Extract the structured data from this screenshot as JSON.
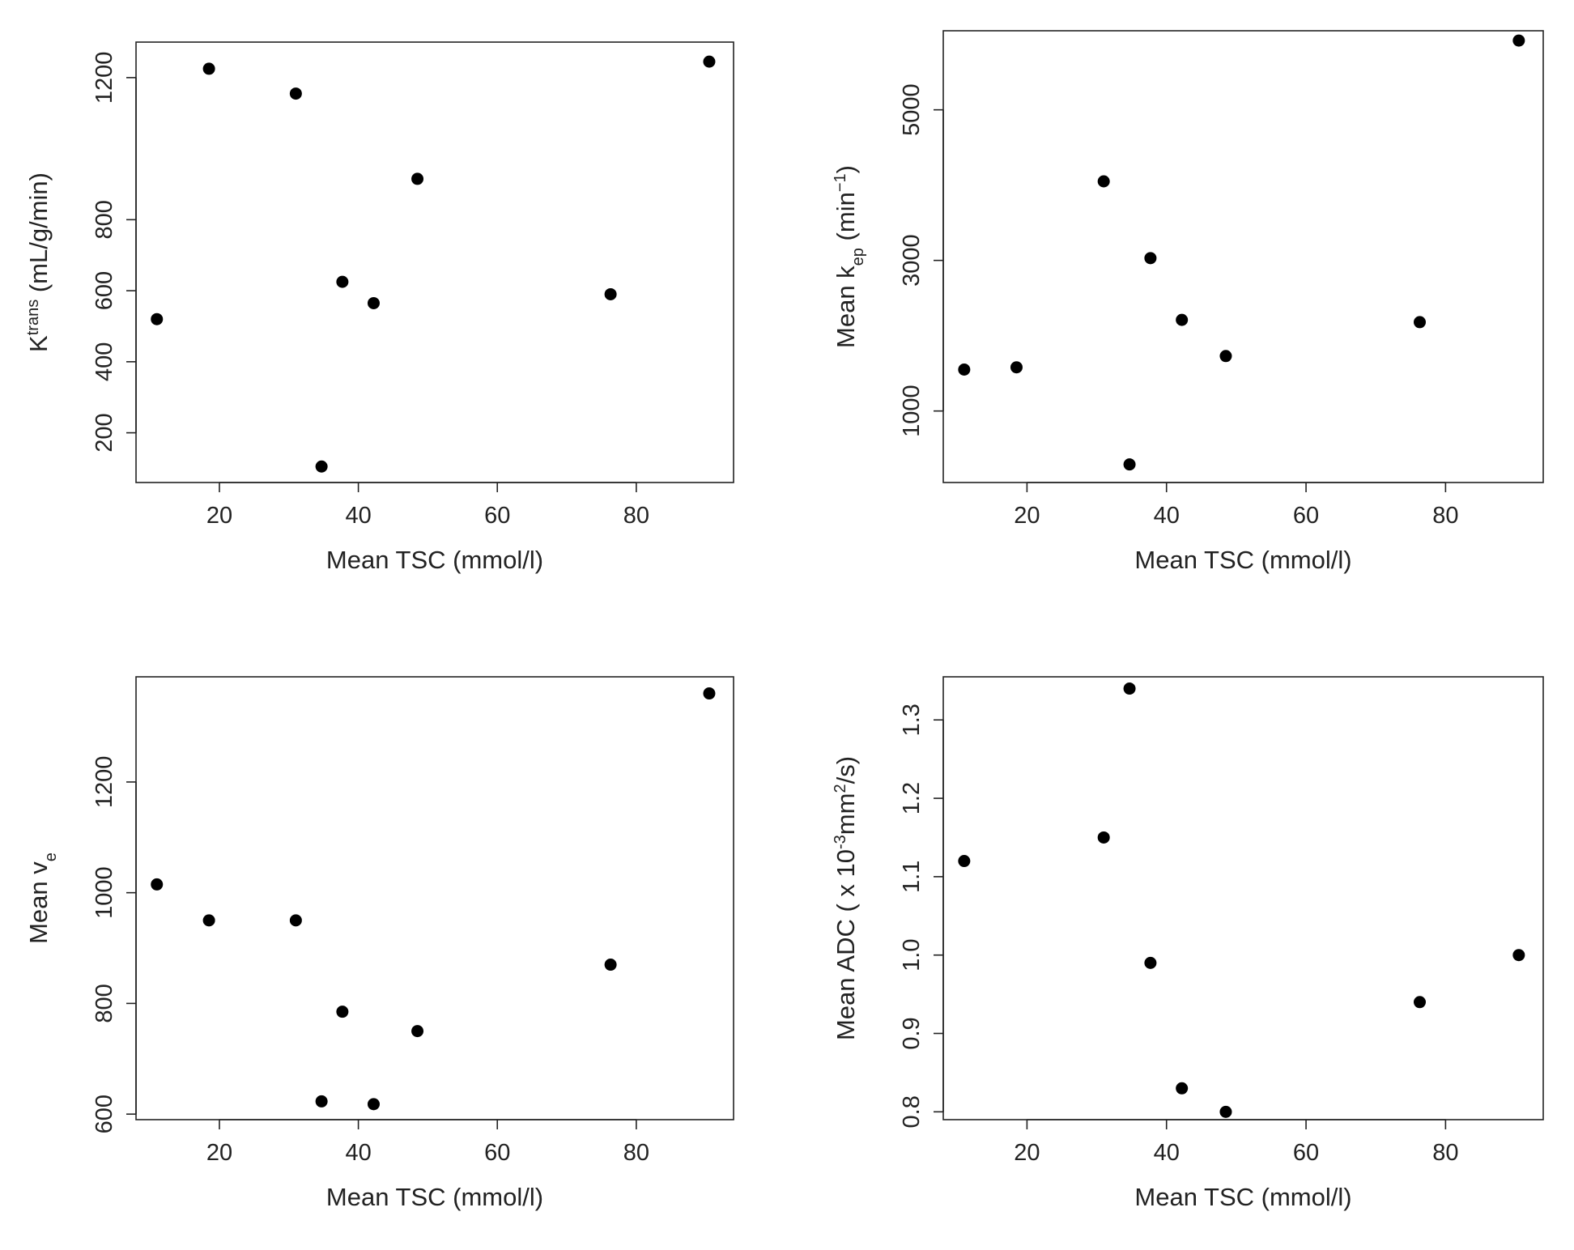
{
  "chart_data": [
    {
      "type": "scatter",
      "xlabel": "Mean TSC (mmol/l)",
      "ylabel_parts": [
        {
          "text": "K"
        },
        {
          "text": "trans",
          "shift": "super"
        },
        {
          "text": " (mL/g/min)"
        }
      ],
      "xlim": [
        8,
        94
      ],
      "ylim": [
        60,
        1300
      ],
      "xticks": [
        20,
        40,
        60,
        80
      ],
      "yticks": [
        200,
        400,
        600,
        800,
        1200
      ],
      "points": [
        {
          "x": 11,
          "y": 520
        },
        {
          "x": 18.5,
          "y": 1225
        },
        {
          "x": 31,
          "y": 1155
        },
        {
          "x": 34.7,
          "y": 105
        },
        {
          "x": 37.7,
          "y": 625
        },
        {
          "x": 42.2,
          "y": 565
        },
        {
          "x": 48.5,
          "y": 915
        },
        {
          "x": 76.3,
          "y": 590
        },
        {
          "x": 90.5,
          "y": 1245
        }
      ]
    },
    {
      "type": "scatter",
      "xlabel": "Mean TSC (mmol/l)",
      "ylabel_parts": [
        {
          "text": "Mean k"
        },
        {
          "text": "ep",
          "shift": "sub"
        },
        {
          "text": " (min"
        },
        {
          "text": "−1",
          "shift": "super"
        },
        {
          "text": ")"
        }
      ],
      "xlim": [
        8,
        94
      ],
      "ylim": [
        50,
        6050
      ],
      "xticks": [
        20,
        40,
        60,
        80
      ],
      "yticks": [
        1000,
        3000,
        5000
      ],
      "points": [
        {
          "x": 11,
          "y": 1550
        },
        {
          "x": 18.5,
          "y": 1580
        },
        {
          "x": 31,
          "y": 4050
        },
        {
          "x": 34.7,
          "y": 290
        },
        {
          "x": 37.7,
          "y": 3030
        },
        {
          "x": 42.2,
          "y": 2210
        },
        {
          "x": 48.5,
          "y": 1730
        },
        {
          "x": 76.3,
          "y": 2180
        },
        {
          "x": 90.5,
          "y": 5920
        }
      ]
    },
    {
      "type": "scatter",
      "xlabel": "Mean TSC (mmol/l)",
      "ylabel_parts": [
        {
          "text": "Mean v"
        },
        {
          "text": "e",
          "shift": "sub"
        }
      ],
      "xlim": [
        8,
        94
      ],
      "ylim": [
        590,
        1390
      ],
      "xticks": [
        20,
        40,
        60,
        80
      ],
      "yticks": [
        600,
        800,
        1000,
        1200
      ],
      "points": [
        {
          "x": 11,
          "y": 1015
        },
        {
          "x": 18.5,
          "y": 950
        },
        {
          "x": 31,
          "y": 950
        },
        {
          "x": 34.7,
          "y": 623
        },
        {
          "x": 37.7,
          "y": 785
        },
        {
          "x": 42.2,
          "y": 618
        },
        {
          "x": 48.5,
          "y": 750
        },
        {
          "x": 76.3,
          "y": 870
        },
        {
          "x": 90.5,
          "y": 1360
        }
      ]
    },
    {
      "type": "scatter",
      "xlabel": "Mean TSC (mmol/l)",
      "ylabel_parts": [
        {
          "text": "Mean ADC ( x 10"
        },
        {
          "text": "-3",
          "shift": "super"
        },
        {
          "text": "mm"
        },
        {
          "text": "2",
          "shift": "super"
        },
        {
          "text": "/s)"
        }
      ],
      "xlim": [
        8,
        94
      ],
      "ylim": [
        0.79,
        1.355
      ],
      "xticks": [
        20,
        40,
        60,
        80
      ],
      "yticks": [
        0.8,
        0.9,
        1.0,
        1.1,
        1.2,
        1.3
      ],
      "ytick_labels": [
        "0.8",
        "0.9",
        "1.0",
        "1.1",
        "1.2",
        "1.3"
      ],
      "points": [
        {
          "x": 11,
          "y": 1.12
        },
        {
          "x": 31,
          "y": 1.15
        },
        {
          "x": 34.7,
          "y": 1.34
        },
        {
          "x": 37.7,
          "y": 0.99
        },
        {
          "x": 42.2,
          "y": 0.83
        },
        {
          "x": 48.5,
          "y": 0.8
        },
        {
          "x": 76.3,
          "y": 0.94
        },
        {
          "x": 90.5,
          "y": 1.0
        }
      ]
    }
  ]
}
